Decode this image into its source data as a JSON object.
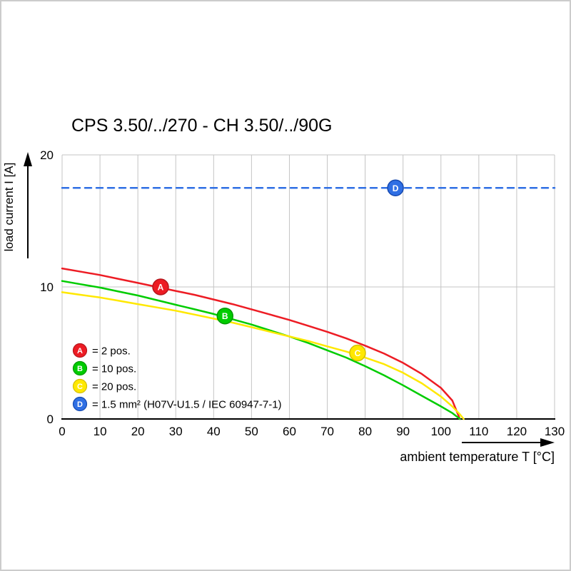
{
  "chart_data": {
    "type": "line",
    "title": "CPS 3.50/../270 - CH 3.50/../90G",
    "xlabel": "ambient temperature T [°C]",
    "ylabel": "load current I [A]",
    "xlim": [
      0,
      130
    ],
    "ylim": [
      0,
      20
    ],
    "x_ticks": [
      0,
      10,
      20,
      30,
      40,
      50,
      60,
      70,
      80,
      90,
      100,
      110,
      120,
      130
    ],
    "y_ticks": [
      0,
      10,
      20
    ],
    "grid": true,
    "legend_position": "inside-lower-left",
    "colors": {
      "grid": "#c4c4c4",
      "axis": "#000000",
      "background": "#ffffff"
    },
    "series": [
      {
        "id": "A",
        "legend": "= 2 pos.",
        "color": "#ed1c24",
        "color_dark": "#b5161c",
        "dashed": false,
        "marker": {
          "x": 26,
          "y": 10.0
        },
        "points": [
          [
            0,
            11.4
          ],
          [
            5,
            11.15
          ],
          [
            10,
            10.9
          ],
          [
            15,
            10.6
          ],
          [
            20,
            10.3
          ],
          [
            25,
            10.0
          ],
          [
            30,
            9.7
          ],
          [
            35,
            9.4
          ],
          [
            40,
            9.05
          ],
          [
            45,
            8.7
          ],
          [
            50,
            8.3
          ],
          [
            55,
            7.9
          ],
          [
            60,
            7.5
          ],
          [
            65,
            7.05
          ],
          [
            70,
            6.6
          ],
          [
            75,
            6.1
          ],
          [
            80,
            5.55
          ],
          [
            85,
            4.95
          ],
          [
            90,
            4.25
          ],
          [
            95,
            3.4
          ],
          [
            100,
            2.35
          ],
          [
            103,
            1.4
          ],
          [
            105,
            0
          ]
        ]
      },
      {
        "id": "B",
        "legend": "= 10 pos.",
        "color": "#00cc00",
        "color_dark": "#009900",
        "dashed": false,
        "marker": {
          "x": 43,
          "y": 7.8
        },
        "points": [
          [
            0,
            10.45
          ],
          [
            5,
            10.2
          ],
          [
            10,
            9.95
          ],
          [
            15,
            9.65
          ],
          [
            20,
            9.35
          ],
          [
            25,
            9.0
          ],
          [
            30,
            8.65
          ],
          [
            35,
            8.3
          ],
          [
            40,
            7.95
          ],
          [
            45,
            7.55
          ],
          [
            50,
            7.15
          ],
          [
            55,
            6.7
          ],
          [
            60,
            6.25
          ],
          [
            65,
            5.75
          ],
          [
            70,
            5.2
          ],
          [
            75,
            4.65
          ],
          [
            80,
            4.0
          ],
          [
            85,
            3.3
          ],
          [
            90,
            2.55
          ],
          [
            95,
            1.75
          ],
          [
            100,
            0.95
          ],
          [
            103,
            0.45
          ],
          [
            105,
            0
          ]
        ]
      },
      {
        "id": "C",
        "legend": "= 20 pos.",
        "color": "#ffe800",
        "color_dark": "#d4c000",
        "dashed": false,
        "marker": {
          "x": 78,
          "y": 5.0
        },
        "points": [
          [
            0,
            9.6
          ],
          [
            5,
            9.4
          ],
          [
            10,
            9.2
          ],
          [
            15,
            8.95
          ],
          [
            20,
            8.7
          ],
          [
            25,
            8.45
          ],
          [
            30,
            8.2
          ],
          [
            35,
            7.9
          ],
          [
            40,
            7.6
          ],
          [
            45,
            7.3
          ],
          [
            50,
            6.95
          ],
          [
            55,
            6.6
          ],
          [
            60,
            6.25
          ],
          [
            65,
            5.9
          ],
          [
            70,
            5.5
          ],
          [
            75,
            5.1
          ],
          [
            80,
            4.65
          ],
          [
            85,
            4.15
          ],
          [
            90,
            3.5
          ],
          [
            95,
            2.7
          ],
          [
            100,
            1.7
          ],
          [
            103,
            0.95
          ],
          [
            105,
            0.35
          ],
          [
            106,
            0
          ]
        ]
      },
      {
        "id": "D",
        "legend": "= 1.5 mm² (H07V-U1.5 / IEC 60947-7-1)",
        "color": "#2f6fe4",
        "color_dark": "#1549b0",
        "dashed": true,
        "marker": {
          "x": 88,
          "y": 17.5
        },
        "points": [
          [
            0,
            17.5
          ],
          [
            130,
            17.5
          ]
        ]
      }
    ]
  }
}
